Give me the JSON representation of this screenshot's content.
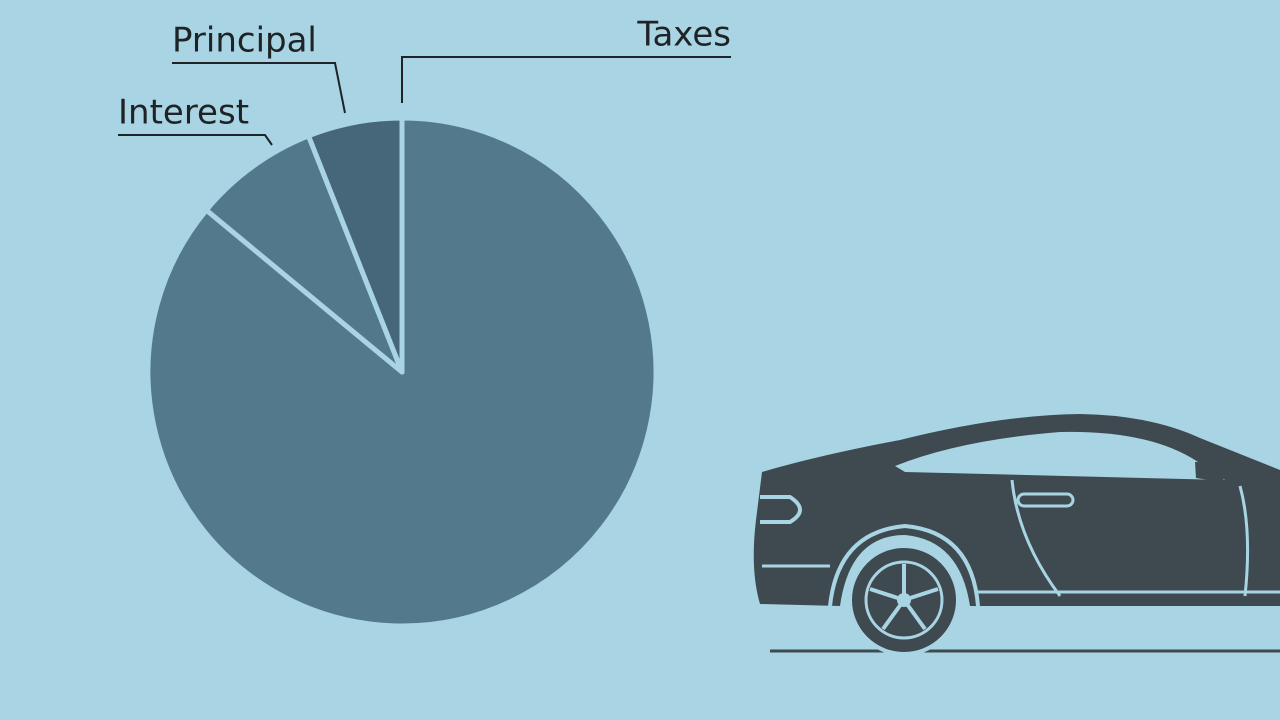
{
  "chart_data": {
    "type": "pie",
    "categories": [
      "Taxes",
      "Interest",
      "Principal"
    ],
    "values": [
      86,
      8,
      6
    ],
    "colors": [
      "#537a8c",
      "#52798b",
      "#46677a"
    ]
  }
}
